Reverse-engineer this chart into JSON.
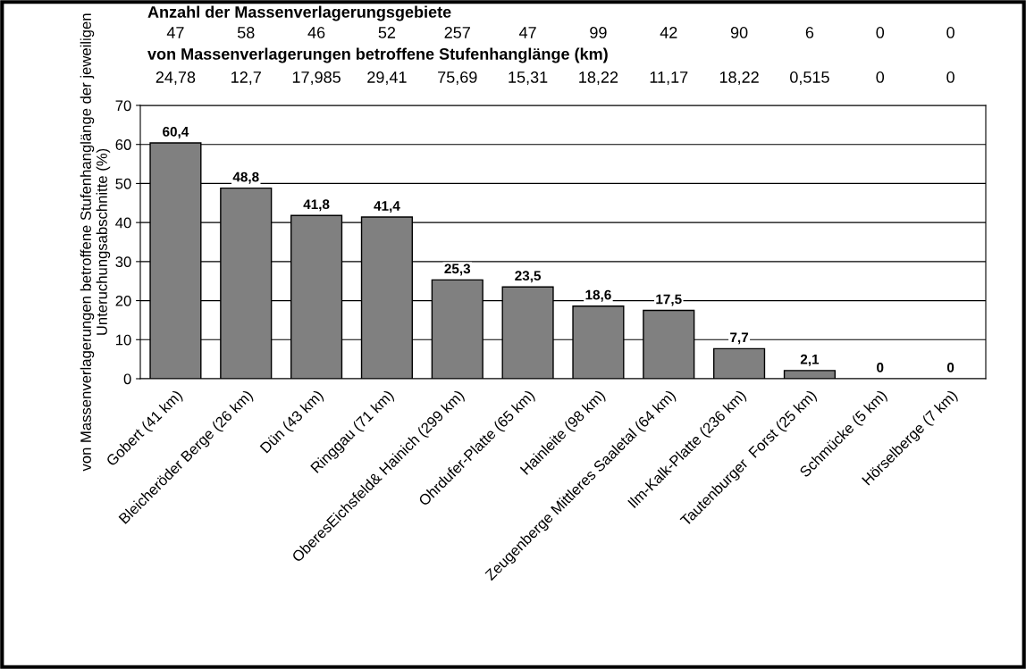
{
  "chart_data": {
    "type": "bar",
    "ylabel": "von Massenverlagerungen betroffene Stufenhanglänge der jeweiligen Unteruchungsabschnitte (%)",
    "categories": [
      "Gobert (41 km)",
      "Bleicheröder Berge (26 km)",
      "Dün (43 km)",
      "Ringgau (71 km)",
      "OberesEichsfeld& Hainich (299 km)",
      "Ohrdufer-Platte (65 km)",
      "Hainleite (98 km)",
      "Zeugenberge Mittleres Saaletal (64 km)",
      "Ilm-Kalk-Platte (236 km)",
      "Tautenburger  Forst (25 km)",
      "Schmücke (5 km)",
      "Hörselberge (7 km)"
    ],
    "values": [
      60.4,
      48.8,
      41.8,
      41.4,
      25.3,
      23.5,
      18.6,
      17.5,
      7.7,
      2.1,
      0,
      0
    ],
    "value_labels": [
      "60,4",
      "48,8",
      "41,8",
      "41,4",
      "25,3",
      "23,5",
      "18,6",
      "17,5",
      "7,7",
      "2,1",
      "0",
      "0"
    ],
    "color": "#808080",
    "ylim": [
      0,
      70
    ],
    "yticks": [
      0,
      10,
      20,
      30,
      40,
      50,
      60,
      70
    ],
    "grid": "y",
    "legend": false,
    "annotations": [
      "Anzahl der Massenverlagerungsgebiete",
      "47",
      "58",
      "46",
      "52",
      "257",
      "47",
      "99",
      "42",
      "90",
      "6",
      "0",
      "0",
      "von Massenverlagerungen betroffene Stufenhanglänge (km)",
      "24,78",
      "12,7",
      "17,985",
      "29,41",
      "75,69",
      "15,31",
      "18,22",
      "11,17",
      "18,22",
      "0,515",
      "0",
      "0"
    ]
  }
}
